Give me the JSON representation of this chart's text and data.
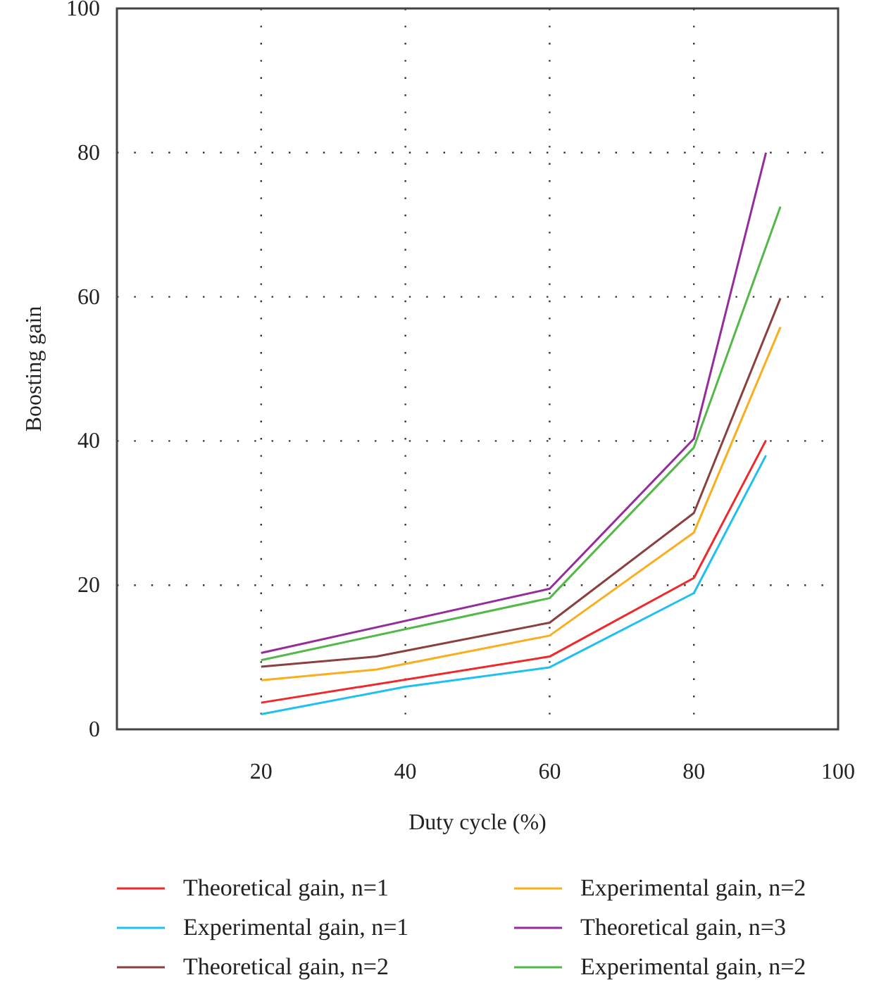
{
  "chart_data": {
    "type": "line",
    "xlabel": "Duty cycle (%)",
    "ylabel": "Boosting gain",
    "xlim": [
      0,
      100
    ],
    "ylim": [
      0,
      100
    ],
    "xticks": [
      20,
      40,
      60,
      80,
      100
    ],
    "yticks": [
      0,
      20,
      40,
      60,
      80,
      100
    ],
    "grid": true,
    "legend": "bottom",
    "line_style": "solid",
    "marker": "none",
    "series": [
      {
        "name": "Theoretical gain, n=1",
        "color": "#f0272b",
        "x": [
          20,
          60,
          80,
          90
        ],
        "values": [
          3.7,
          10.1,
          21,
          40.1
        ]
      },
      {
        "name": "Experimental gain, n=1",
        "color": "#1ec0f0",
        "x": [
          20,
          40,
          60,
          80,
          90
        ],
        "values": [
          2.1,
          5.9,
          8.6,
          18.9,
          38
        ]
      },
      {
        "name": "Theoretical gain, n=2",
        "color": "#8b3f3f",
        "x": [
          20,
          36,
          60,
          80,
          92
        ],
        "values": [
          8.7,
          10.1,
          14.8,
          30,
          59.8
        ]
      },
      {
        "name": "Experimental gain, n=2",
        "color": "#fbad1b",
        "x": [
          20,
          36,
          60,
          80,
          92
        ],
        "values": [
          6.8,
          8.3,
          13,
          27.3,
          55.8
        ]
      },
      {
        "name": "Theoretical gain, n=3",
        "color": "#962b9c",
        "x": [
          20,
          60,
          80,
          90
        ],
        "values": [
          10.6,
          19.5,
          40.3,
          80
        ]
      },
      {
        "name": "Experimental gain, n=2",
        "color": "#52b848",
        "x": [
          20,
          60,
          80,
          92
        ],
        "values": [
          9.6,
          18.2,
          39.1,
          72.5
        ]
      }
    ]
  }
}
